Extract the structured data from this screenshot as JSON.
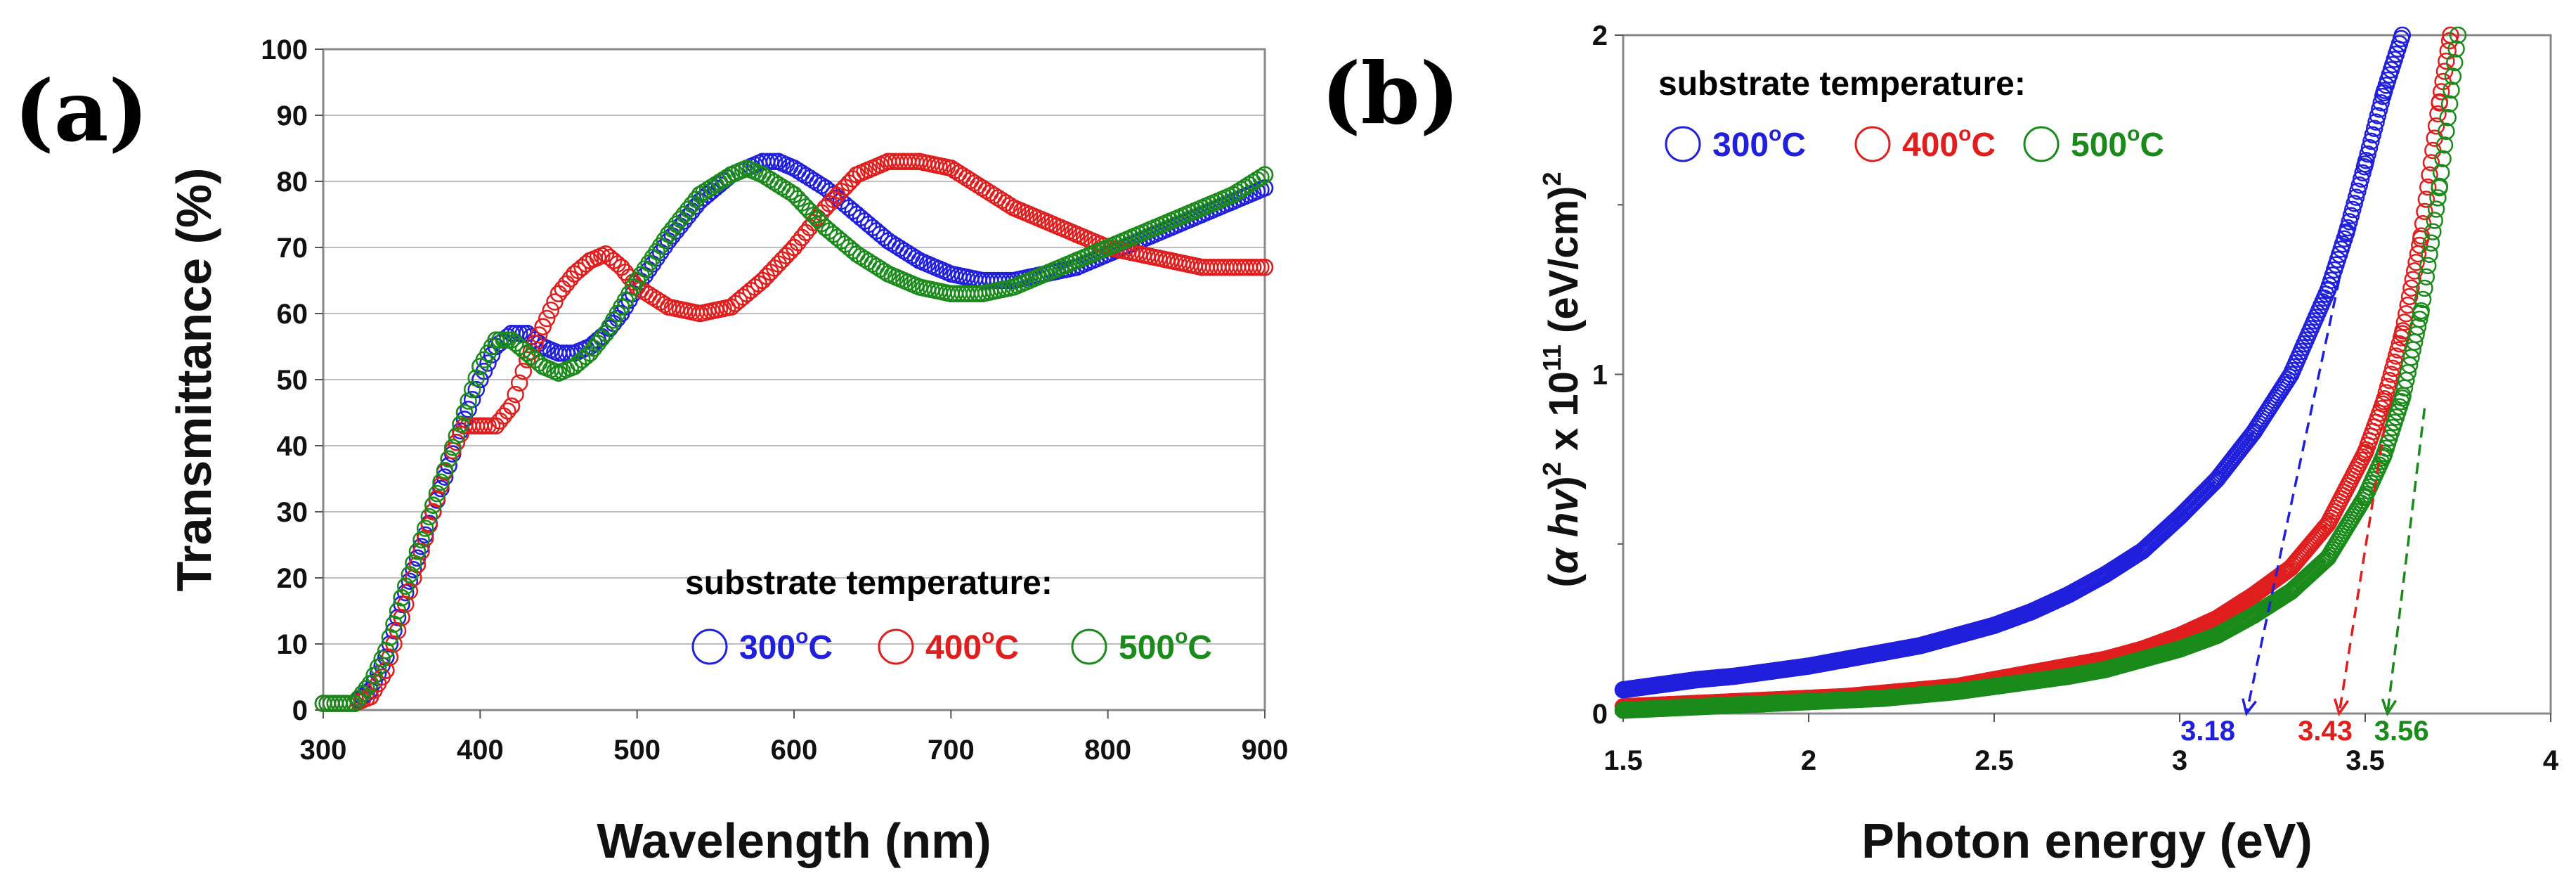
{
  "chart_data": [
    {
      "panel": "(a)",
      "type": "scatter",
      "title": "",
      "xlabel": "Wavelength (nm)",
      "ylabel": "Transmittance (%)",
      "xlim": [
        300,
        900
      ],
      "ylim": [
        0,
        100
      ],
      "xticks": [
        "300",
        "400",
        "500",
        "600",
        "700",
        "800",
        "900"
      ],
      "yticks": [
        "0",
        "10",
        "20",
        "30",
        "40",
        "50",
        "60",
        "70",
        "80",
        "90",
        "100"
      ],
      "grid": "horizontal",
      "legend": {
        "placement": "bottom-right",
        "title": "substrate temperature:",
        "entries": [
          {
            "value": "300",
            "sup": "o",
            "unit": "C",
            "color": "#1f1fdc"
          },
          {
            "value": "400",
            "sup": "o",
            "unit": "C",
            "color": "#e01e1e"
          },
          {
            "value": "500",
            "sup": "o",
            "unit": "C",
            "color": "#1a8a1a"
          }
        ]
      },
      "series": [
        {
          "name": "300 °C",
          "color": "#1f1fdc",
          "x": [
            300,
            320,
            330,
            340,
            350,
            360,
            370,
            380,
            390,
            400,
            410,
            420,
            430,
            440,
            450,
            460,
            470,
            480,
            490,
            500,
            520,
            540,
            560,
            580,
            590,
            600,
            620,
            640,
            660,
            680,
            700,
            720,
            740,
            760,
            780,
            800,
            820,
            840,
            860,
            880,
            900
          ],
          "y": [
            1,
            1,
            3,
            8,
            16,
            23,
            30,
            37,
            44,
            50,
            55,
            57,
            57,
            55,
            54,
            54,
            55,
            57,
            60,
            64,
            71,
            77,
            81,
            83,
            83,
            82,
            79,
            75,
            71,
            68,
            66,
            65,
            65,
            66,
            67,
            69,
            71,
            73,
            75,
            77,
            79
          ]
        },
        {
          "name": "400 °C",
          "color": "#e01e1e",
          "x": [
            300,
            320,
            330,
            340,
            350,
            360,
            370,
            380,
            390,
            400,
            410,
            420,
            430,
            440,
            450,
            460,
            470,
            480,
            490,
            500,
            520,
            540,
            560,
            580,
            600,
            620,
            640,
            660,
            670,
            680,
            700,
            720,
            740,
            760,
            780,
            800,
            820,
            840,
            860,
            880,
            900
          ],
          "y": [
            1,
            1,
            2,
            6,
            14,
            22,
            30,
            38,
            43,
            43,
            43,
            46,
            53,
            58,
            63,
            66,
            68,
            69,
            67,
            64,
            61,
            60,
            61,
            65,
            70,
            76,
            81,
            83,
            83,
            83,
            82,
            79,
            76,
            74,
            72,
            70,
            69,
            68,
            67,
            67,
            67
          ]
        },
        {
          "name": "500 °C",
          "color": "#1a8a1a",
          "x": [
            300,
            320,
            330,
            340,
            350,
            360,
            370,
            380,
            390,
            400,
            410,
            420,
            430,
            440,
            450,
            460,
            470,
            480,
            490,
            500,
            520,
            540,
            560,
            570,
            580,
            600,
            620,
            640,
            660,
            680,
            700,
            720,
            740,
            760,
            780,
            800,
            820,
            840,
            860,
            880,
            900
          ],
          "y": [
            1,
            1,
            4,
            9,
            17,
            24,
            31,
            38,
            45,
            52,
            56,
            56,
            54,
            52,
            51,
            52,
            54,
            57,
            61,
            65,
            72,
            78,
            81,
            82,
            81,
            78,
            73,
            69,
            66,
            64,
            63,
            63,
            64,
            66,
            68,
            70,
            72,
            74,
            76,
            78,
            81
          ]
        }
      ]
    },
    {
      "panel": "(b)",
      "type": "scatter",
      "title": "",
      "xlabel": "Photon energy (eV)",
      "ylabel_parts": [
        "(",
        "α",
        " ",
        "hv",
        ")",
        "2",
        " x 10",
        "11",
        " (eV/cm)",
        "2"
      ],
      "xlim": [
        1.5,
        4
      ],
      "ylim": [
        0,
        2
      ],
      "xticks": [
        "1.5",
        "2",
        "2.5",
        "3",
        "3.5",
        "4"
      ],
      "yticks": [
        "0",
        "1",
        "2"
      ],
      "grid": "none",
      "legend": {
        "placement": "top-left",
        "title": "substrate temperature:",
        "entries": [
          {
            "value": "300",
            "sup": "o",
            "unit": "C",
            "color": "#1f1fdc"
          },
          {
            "value": "400",
            "sup": "o",
            "unit": "C",
            "color": "#e01e1e"
          },
          {
            "value": "500",
            "sup": "o",
            "unit": "C",
            "color": "#1a8a1a"
          }
        ]
      },
      "series": [
        {
          "name": "300 °C",
          "color": "#1f1fdc",
          "x": [
            1.5,
            1.6,
            1.7,
            1.8,
            1.9,
            2.0,
            2.1,
            2.2,
            2.3,
            2.4,
            2.5,
            2.6,
            2.7,
            2.8,
            2.9,
            3.0,
            3.1,
            3.2,
            3.3,
            3.4,
            3.45,
            3.5,
            3.55,
            3.6
          ],
          "y": [
            0.07,
            0.085,
            0.1,
            0.11,
            0.125,
            0.14,
            0.16,
            0.18,
            0.2,
            0.23,
            0.26,
            0.3,
            0.35,
            0.41,
            0.48,
            0.58,
            0.69,
            0.83,
            1.0,
            1.25,
            1.42,
            1.62,
            1.83,
            2.0
          ]
        },
        {
          "name": "400 °C",
          "color": "#e01e1e",
          "x": [
            1.5,
            1.6,
            1.7,
            1.8,
            1.9,
            2.0,
            2.1,
            2.2,
            2.3,
            2.4,
            2.5,
            2.6,
            2.7,
            2.8,
            2.9,
            3.0,
            3.1,
            3.2,
            3.3,
            3.4,
            3.5,
            3.55,
            3.6,
            3.65,
            3.7,
            3.73
          ],
          "y": [
            0.02,
            0.025,
            0.03,
            0.035,
            0.04,
            0.045,
            0.05,
            0.06,
            0.07,
            0.08,
            0.1,
            0.12,
            0.14,
            0.16,
            0.19,
            0.23,
            0.28,
            0.35,
            0.43,
            0.56,
            0.77,
            0.92,
            1.12,
            1.4,
            1.8,
            2.0
          ]
        },
        {
          "name": "500 °C",
          "color": "#1a8a1a",
          "x": [
            1.5,
            1.6,
            1.7,
            1.8,
            1.9,
            2.0,
            2.1,
            2.2,
            2.3,
            2.4,
            2.5,
            2.6,
            2.7,
            2.8,
            2.9,
            3.0,
            3.1,
            3.2,
            3.3,
            3.4,
            3.5,
            3.55,
            3.6,
            3.65,
            3.7,
            3.75
          ],
          "y": [
            0.01,
            0.015,
            0.02,
            0.025,
            0.03,
            0.035,
            0.04,
            0.045,
            0.055,
            0.065,
            0.08,
            0.095,
            0.11,
            0.13,
            0.16,
            0.19,
            0.23,
            0.29,
            0.36,
            0.46,
            0.64,
            0.76,
            0.93,
            1.18,
            1.55,
            2.0
          ]
        }
      ],
      "fit_lines": [
        {
          "color": "#1f1fdc",
          "from": [
            3.43,
            1.28
          ],
          "to": [
            3.18,
            0.0
          ],
          "label": "3.18"
        },
        {
          "color": "#e01e1e",
          "from": [
            3.56,
            0.9
          ],
          "to": [
            3.43,
            0.0
          ],
          "label": "3.43"
        },
        {
          "color": "#1a8a1a",
          "from": [
            3.66,
            0.9
          ],
          "to": [
            3.56,
            0.0
          ],
          "label": "3.56"
        }
      ]
    }
  ]
}
